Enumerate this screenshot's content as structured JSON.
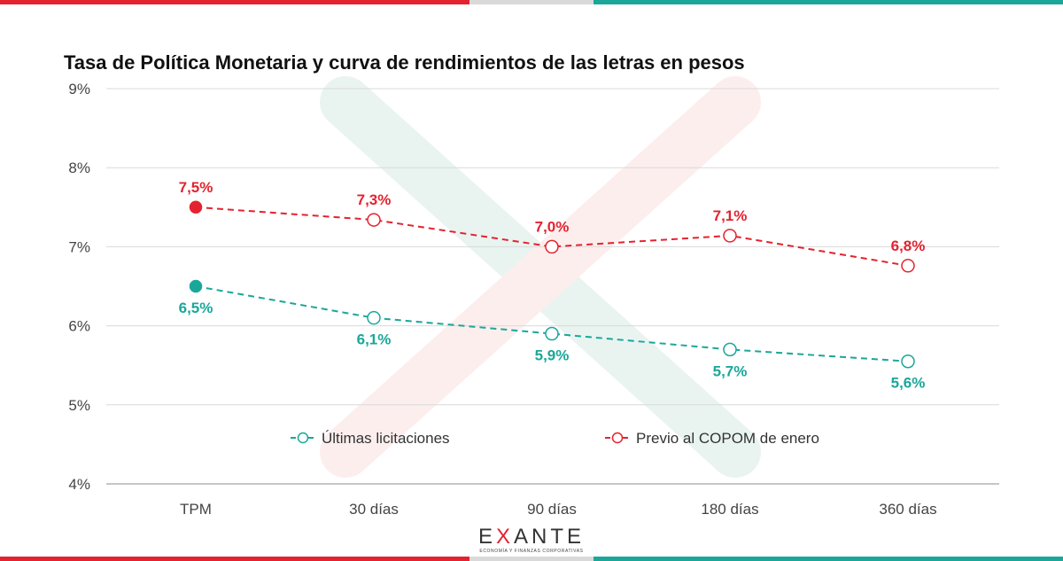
{
  "chart_data": {
    "type": "line",
    "title": "Tasa de Política Monetaria y curva de rendimientos de las letras en pesos",
    "categories": [
      "TPM",
      "30 días",
      "90 días",
      "180 días",
      "360 días"
    ],
    "y_ticks": [
      "4%",
      "5%",
      "6%",
      "7%",
      "8%",
      "9%"
    ],
    "ylim": [
      4,
      9
    ],
    "grid": "horizontal",
    "legend_position": "bottom-inside",
    "series": [
      {
        "name": "Últimas licitaciones",
        "color": "#1aa79a",
        "line_style": "dashed",
        "values": [
          6.5,
          6.1,
          5.9,
          5.7,
          5.55
        ],
        "labels": [
          "6,5%",
          "6,1%",
          "5,9%",
          "5,7%",
          "5,6%"
        ]
      },
      {
        "name": "Previo al COPOM de enero",
        "color": "#e3232f",
        "line_style": "dashed",
        "values": [
          7.5,
          7.34,
          7.0,
          7.14,
          6.76
        ],
        "labels": [
          "7,5%",
          "7,3%",
          "7,0%",
          "7,1%",
          "6,8%"
        ]
      }
    ]
  },
  "logo": {
    "x_letter": "X",
    "prefix": "E",
    "suffix": "ANTE",
    "tagline": "ECONOMÍA Y FINANZAS CORPORATIVAS"
  },
  "colors": {
    "accent_red": "#e3232f",
    "accent_teal": "#1aa79a",
    "divider_gray": "#d9d9d9"
  }
}
